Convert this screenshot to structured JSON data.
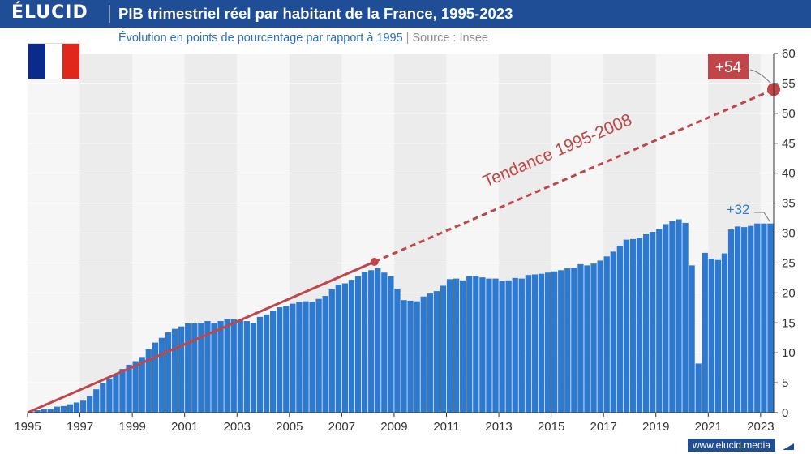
{
  "header": {
    "logo": "ÉLUCID",
    "title": "PIB trimestriel réel par habitant de la France, 1995-2023"
  },
  "subtitle": {
    "text": "Évolution en points de pourcentage par rapport à 1995",
    "separator": "|",
    "source": "Source : Insee"
  },
  "flag": {
    "colors": [
      "#0a2a8c",
      "#ffffff",
      "#e1261c"
    ]
  },
  "footer": {
    "url": "www.elucid.media"
  },
  "colors": {
    "bar": "#2e79d0",
    "trend": "#c0464a",
    "band": "#ececec",
    "header": "#1f4e96"
  },
  "chart_data": {
    "type": "bar",
    "x_tick_labels": [
      "1995",
      "1997",
      "1999",
      "2001",
      "2003",
      "2005",
      "2007",
      "2009",
      "2011",
      "2013",
      "2015",
      "2017",
      "2019",
      "2021",
      "2023"
    ],
    "y_tick_labels": [
      "0",
      "5",
      "10",
      "15",
      "20",
      "25",
      "30",
      "35",
      "40",
      "45",
      "50",
      "55",
      "60"
    ],
    "ylim": [
      0,
      60
    ],
    "xlim": [
      1995,
      2023.5
    ],
    "grid": true,
    "series": [
      {
        "type": "bar",
        "quarters": [
          "1995-Q1",
          "1995-Q2",
          "1995-Q3",
          "1995-Q4",
          "1996-Q1",
          "1996-Q2",
          "1996-Q3",
          "1996-Q4",
          "1997-Q1",
          "1997-Q2",
          "1997-Q3",
          "1997-Q4",
          "1998-Q1",
          "1998-Q2",
          "1998-Q3",
          "1998-Q4",
          "1999-Q1",
          "1999-Q2",
          "1999-Q3",
          "1999-Q4",
          "2000-Q1",
          "2000-Q2",
          "2000-Q3",
          "2000-Q4",
          "2001-Q1",
          "2001-Q2",
          "2001-Q3",
          "2001-Q4",
          "2002-Q1",
          "2002-Q2",
          "2002-Q3",
          "2002-Q4",
          "2003-Q1",
          "2003-Q2",
          "2003-Q3",
          "2003-Q4",
          "2004-Q1",
          "2004-Q2",
          "2004-Q3",
          "2004-Q4",
          "2005-Q1",
          "2005-Q2",
          "2005-Q3",
          "2005-Q4",
          "2006-Q1",
          "2006-Q2",
          "2006-Q3",
          "2006-Q4",
          "2007-Q1",
          "2007-Q2",
          "2007-Q3",
          "2007-Q4",
          "2008-Q1",
          "2008-Q2",
          "2008-Q3",
          "2008-Q4",
          "2009-Q1",
          "2009-Q2",
          "2009-Q3",
          "2009-Q4",
          "2010-Q1",
          "2010-Q2",
          "2010-Q3",
          "2010-Q4",
          "2011-Q1",
          "2011-Q2",
          "2011-Q3",
          "2011-Q4",
          "2012-Q1",
          "2012-Q2",
          "2012-Q3",
          "2012-Q4",
          "2013-Q1",
          "2013-Q2",
          "2013-Q3",
          "2013-Q4",
          "2014-Q1",
          "2014-Q2",
          "2014-Q3",
          "2014-Q4",
          "2015-Q1",
          "2015-Q2",
          "2015-Q3",
          "2015-Q4",
          "2016-Q1",
          "2016-Q2",
          "2016-Q3",
          "2016-Q4",
          "2017-Q1",
          "2017-Q2",
          "2017-Q3",
          "2017-Q4",
          "2018-Q1",
          "2018-Q2",
          "2018-Q3",
          "2018-Q4",
          "2019-Q1",
          "2019-Q2",
          "2019-Q3",
          "2019-Q4",
          "2020-Q1",
          "2020-Q2",
          "2020-Q3",
          "2020-Q4",
          "2021-Q1",
          "2021-Q2",
          "2021-Q3",
          "2021-Q4",
          "2022-Q1",
          "2022-Q2",
          "2022-Q3",
          "2022-Q4",
          "2023-Q1",
          "2023-Q2"
        ],
        "values": [
          0,
          0.4,
          0.6,
          0.6,
          1.0,
          1.1,
          1.4,
          1.7,
          2.0,
          2.8,
          3.9,
          5.0,
          5.7,
          6.4,
          7.3,
          8.0,
          8.6,
          9.3,
          10.6,
          11.7,
          12.5,
          13.4,
          14.0,
          14.4,
          14.9,
          14.9,
          15.0,
          15.3,
          15.0,
          15.3,
          15.6,
          15.6,
          15.5,
          15.3,
          15.0,
          16.0,
          16.4,
          17.0,
          17.6,
          17.8,
          18.2,
          18.5,
          18.6,
          18.5,
          19.0,
          19.5,
          20.6,
          21.4,
          21.6,
          22.2,
          22.8,
          23.5,
          23.8,
          24.1,
          23.4,
          22.8,
          20.7,
          18.8,
          18.7,
          18.6,
          19.4,
          19.9,
          20.3,
          21.2,
          22.3,
          22.4,
          22.1,
          22.8,
          22.8,
          22.6,
          22.4,
          22.4,
          22.0,
          22.1,
          22.5,
          22.4,
          23.0,
          23.1,
          23.2,
          23.4,
          23.6,
          23.8,
          24.1,
          24.2,
          24.8,
          24.6,
          24.9,
          25.4,
          26.1,
          26.9,
          27.9,
          28.9,
          29.0,
          29.2,
          29.8,
          30.2,
          30.7,
          31.5,
          32.0,
          32.3,
          31.7,
          24.6,
          8.2,
          26.7,
          25.7,
          25.5,
          26.6,
          30.6,
          31.1,
          31.0,
          31.2,
          31.6,
          31.6,
          31.6
        ]
      },
      {
        "name": "Tendance 1995-2008",
        "type": "line",
        "x": [
          1995,
          2008.25,
          2023.5
        ],
        "y": [
          0,
          25.2,
          54
        ]
      }
    ],
    "annotations": [
      {
        "text": "Tendance 1995-2008"
      },
      {
        "text": "+54"
      },
      {
        "text": "+32"
      }
    ]
  }
}
